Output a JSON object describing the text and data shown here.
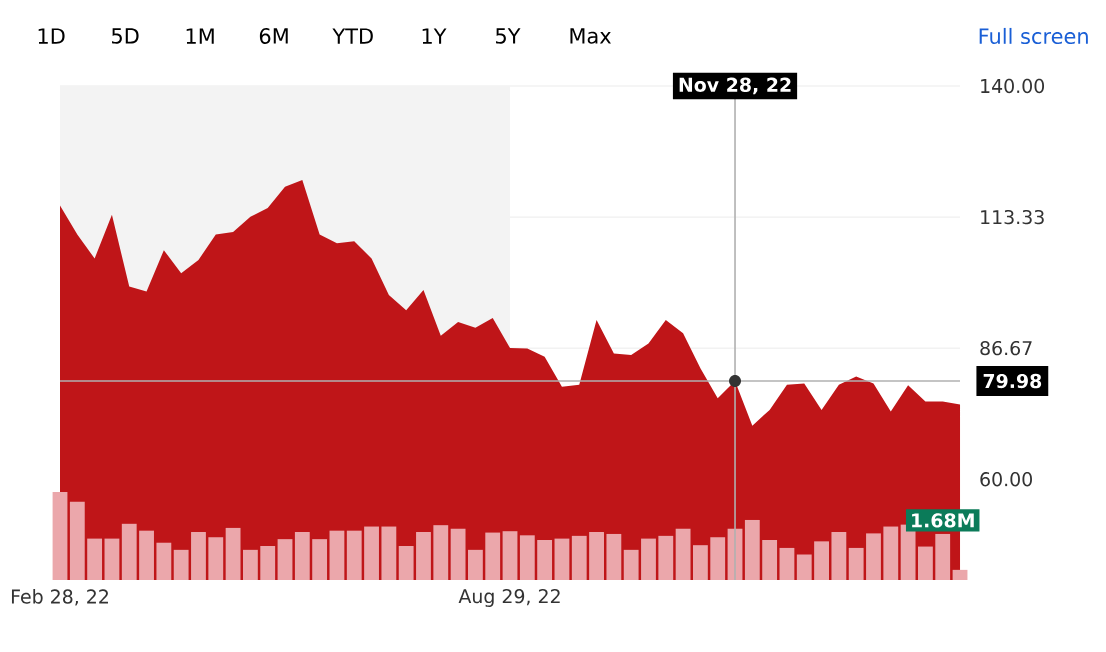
{
  "chart_data": [
    {
      "type": "area",
      "x": [
        "2022-02-28",
        "2022-03-07",
        "2022-03-14",
        "2022-03-21",
        "2022-03-28",
        "2022-04-04",
        "2022-04-11",
        "2022-04-18",
        "2022-04-25",
        "2022-05-02",
        "2022-05-09",
        "2022-05-16",
        "2022-05-23",
        "2022-05-30",
        "2022-06-06",
        "2022-06-13",
        "2022-06-20",
        "2022-06-27",
        "2022-07-04",
        "2022-07-11",
        "2022-07-18",
        "2022-07-25",
        "2022-08-01",
        "2022-08-08",
        "2022-08-15",
        "2022-08-22",
        "2022-08-29",
        "2022-09-05",
        "2022-09-12",
        "2022-09-19",
        "2022-09-26",
        "2022-10-03",
        "2022-10-10",
        "2022-10-17",
        "2022-10-24",
        "2022-10-31",
        "2022-11-07",
        "2022-11-14",
        "2022-11-21",
        "2022-11-28",
        "2022-12-05",
        "2022-12-12",
        "2022-12-19",
        "2022-12-26",
        "2023-01-02",
        "2023-01-09",
        "2023-01-16",
        "2023-01-23",
        "2023-01-30",
        "2023-02-06",
        "2023-02-13",
        "2023-02-20",
        "2023-02-27"
      ],
      "color": "#bf1518",
      "values": [
        115.7,
        109.8,
        104.9,
        113.8,
        99.2,
        98.2,
        106.6,
        101.9,
        104.6,
        109.8,
        110.3,
        113.4,
        115.2,
        119.5,
        120.9,
        109.8,
        108.0,
        108.4,
        104.9,
        97.5,
        94.4,
        98.5,
        89.2,
        92.0,
        90.8,
        92.8,
        86.7,
        86.6,
        84.9,
        78.8,
        79.2,
        92.4,
        85.6,
        85.3,
        87.6,
        92.4,
        89.7,
        82.6,
        76.5,
        80.0,
        70.9,
        74.1,
        79.2,
        79.5,
        74.1,
        79.2,
        80.9,
        79.5,
        73.8,
        79.1,
        75.8,
        75.8,
        75.2
      ],
      "xlim": [
        "2022-02-28",
        "2023-02-27"
      ],
      "xticks": [
        {
          "value": "2022-02-28",
          "label": "Feb 28, 22"
        },
        {
          "value": "2022-08-29",
          "label": "Aug 29, 22"
        }
      ],
      "ylim": [
        39.5,
        140
      ],
      "yticks": [
        {
          "value": 60,
          "label": "60.00"
        },
        86.67,
        113.33,
        {
          "value": 140,
          "label": "140.00"
        }
      ],
      "grid": "y",
      "bands": [
        {
          "axis": "x",
          "from": "2022-02-28",
          "to": "2022-08-29",
          "color": "#f3f3f3"
        }
      ],
      "ref_lines": [
        {
          "axis": "x",
          "value": "2022-11-28",
          "label": "Nov 28, 22",
          "color": "#b0b0b0"
        },
        {
          "axis": "y",
          "value": 79.98,
          "label": "79.98",
          "color": "#b0b0b0"
        }
      ],
      "annotations": [
        "1D",
        "5D",
        "1M",
        "6M",
        "YTD",
        "1Y",
        "5Y",
        "Max",
        "Full screen"
      ]
    },
    {
      "type": "bar",
      "x": [
        "2022-02-28",
        "2022-03-07",
        "2022-03-14",
        "2022-03-21",
        "2022-03-28",
        "2022-04-04",
        "2022-04-11",
        "2022-04-18",
        "2022-04-25",
        "2022-05-02",
        "2022-05-09",
        "2022-05-16",
        "2022-05-23",
        "2022-05-30",
        "2022-06-06",
        "2022-06-13",
        "2022-06-20",
        "2022-06-27",
        "2022-07-04",
        "2022-07-11",
        "2022-07-18",
        "2022-07-25",
        "2022-08-01",
        "2022-08-08",
        "2022-08-15",
        "2022-08-22",
        "2022-08-29",
        "2022-09-05",
        "2022-09-12",
        "2022-09-19",
        "2022-09-26",
        "2022-10-03",
        "2022-10-10",
        "2022-10-17",
        "2022-10-24",
        "2022-10-31",
        "2022-11-07",
        "2022-11-14",
        "2022-11-21",
        "2022-11-28",
        "2022-12-05",
        "2022-12-12",
        "2022-12-19",
        "2022-12-26",
        "2023-01-02",
        "2023-01-09",
        "2023-01-16",
        "2023-01-23",
        "2023-01-30",
        "2023-02-06",
        "2023-02-13",
        "2023-02-20",
        "2023-02-27"
      ],
      "xlim": [
        "2022-02-28",
        "2023-02-27"
      ],
      "color": "#eba7ab",
      "values": [
        3.21,
        2.85,
        1.51,
        1.51,
        2.05,
        1.8,
        1.36,
        1.1,
        1.75,
        1.56,
        1.9,
        1.1,
        1.24,
        1.49,
        1.75,
        1.49,
        1.8,
        1.8,
        1.95,
        1.95,
        1.24,
        1.75,
        2.0,
        1.87,
        1.1,
        1.73,
        1.78,
        1.63,
        1.46,
        1.51,
        1.61,
        1.75,
        1.68,
        1.1,
        1.51,
        1.61,
        1.87,
        1.27,
        1.56,
        1.87,
        2.19,
        1.46,
        1.17,
        0.93,
        1.41,
        1.75,
        1.17,
        1.7,
        1.95,
        2.02,
        1.22,
        1.68,
        0.37
      ],
      "value_labels": [
        null,
        null,
        null,
        null,
        null,
        null,
        null,
        null,
        null,
        null,
        null,
        null,
        null,
        null,
        null,
        null,
        null,
        null,
        null,
        null,
        null,
        null,
        null,
        null,
        null,
        null,
        null,
        null,
        null,
        null,
        null,
        null,
        null,
        null,
        null,
        null,
        null,
        null,
        null,
        null,
        null,
        null,
        null,
        null,
        null,
        null,
        null,
        null,
        null,
        null,
        null,
        "1.68M",
        null
      ]
    }
  ]
}
